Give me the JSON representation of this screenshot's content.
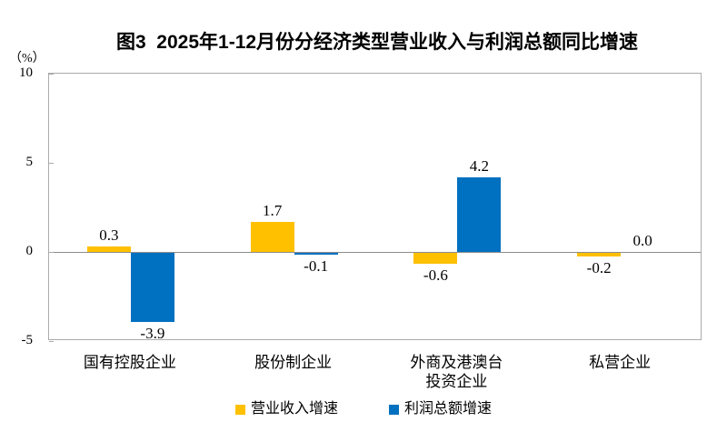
{
  "figure": {
    "background": "#ffffff",
    "border_color": "#ababab",
    "zero_line_color": "#8c8c8c"
  },
  "chart_data": {
    "type": "bar",
    "title": "图3  2025年1-12月份分经济类型营业收入与利润总额同比增速",
    "y_unit": "（%）",
    "xlabel": "",
    "ylabel": "（%）",
    "categories": [
      "国有控股企业",
      "股份制企业",
      "外商及港澳台\n投资企业",
      "私营企业"
    ],
    "series": [
      {
        "key": "revenue-growth",
        "name": "营业收入增速",
        "color": "#FFC000",
        "values": [
          0.3,
          1.7,
          -0.6,
          -0.2
        ]
      },
      {
        "key": "profit-growth",
        "name": "利润总额增速",
        "color": "#0070C0",
        "values": [
          -3.9,
          -0.1,
          4.2,
          0.0
        ]
      }
    ],
    "ylim": [
      -5,
      10
    ],
    "yticks": [
      10,
      5,
      0,
      -5
    ],
    "grid": "zero-line-only",
    "legend_position": "bottom"
  }
}
